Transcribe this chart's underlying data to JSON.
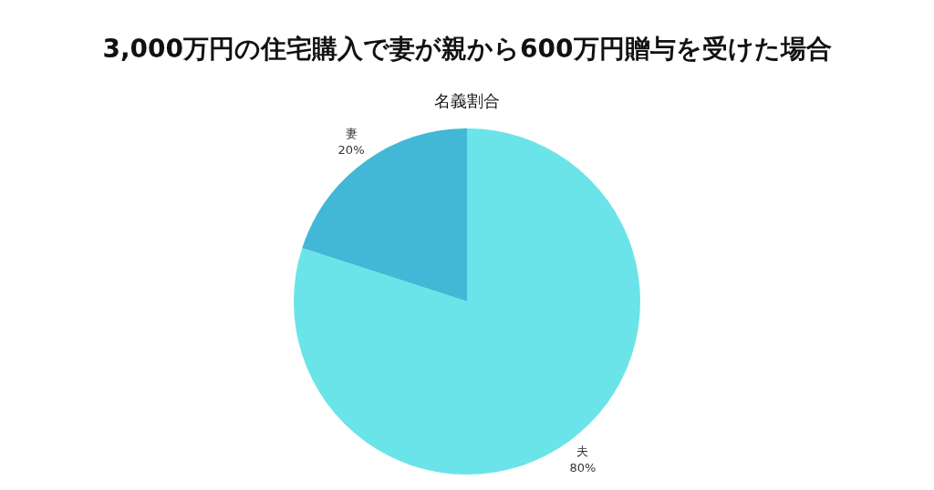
{
  "chart_data": {
    "type": "pie",
    "title": "3,000万円の住宅購入で妻が親から600万円贈与を受けた場合",
    "subtitle": "名義割合",
    "categories": [
      "夫",
      "妻"
    ],
    "values": [
      80,
      20
    ],
    "value_labels": [
      "80%",
      "20%"
    ],
    "colors": [
      "#6ae4e8",
      "#42b8d6"
    ],
    "legend": false
  }
}
